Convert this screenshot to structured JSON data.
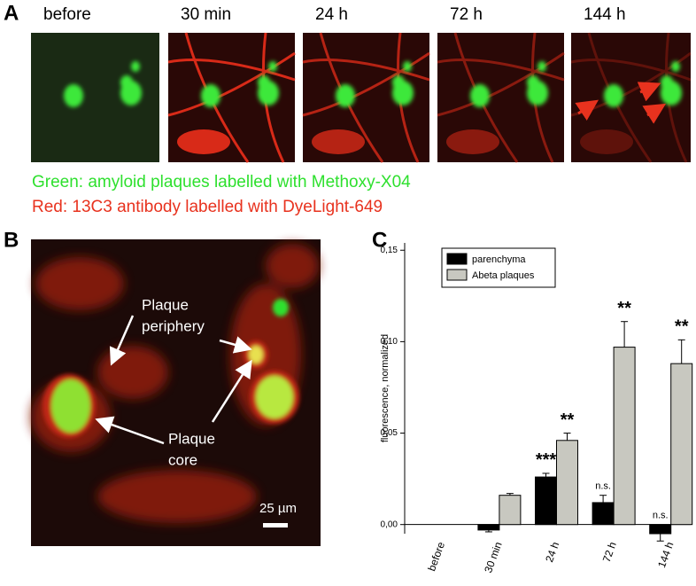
{
  "panel_a": {
    "label": "A",
    "timepoints": [
      "before",
      "30 min",
      "24 h",
      "72 h",
      "144 h"
    ],
    "legend": [
      "Green: amyloid plaques labelled with Methoxy-X04",
      "Red: 13C3 antibody labelled with DyeLight-649"
    ]
  },
  "panel_b": {
    "label": "B",
    "periphery": [
      "Plaque",
      "periphery"
    ],
    "core": [
      "Plaque",
      "core"
    ],
    "scale_bar": "25 µm"
  },
  "chart_data": {
    "type": "bar",
    "label": "C",
    "ylabel": "fluorescence, normalized",
    "categories": [
      "before",
      "30 min",
      "24 h",
      "72 h",
      "144 h"
    ],
    "series": [
      {
        "name": "parenchyma",
        "color": "#000000",
        "values": [
          0,
          -0.003,
          0.026,
          0.012,
          -0.005
        ],
        "errors": [
          0,
          0.001,
          0.002,
          0.004,
          0.004
        ],
        "labels": [
          null,
          null,
          "***",
          "n.s.",
          "n.s."
        ]
      },
      {
        "name": "Abeta plaques",
        "color": "#c8c8c0",
        "values": [
          0,
          0.016,
          0.046,
          0.097,
          0.088
        ],
        "errors": [
          0,
          0.001,
          0.004,
          0.014,
          0.013
        ],
        "labels": [
          null,
          null,
          "**",
          "**",
          "**"
        ]
      }
    ],
    "ylim": [
      -0.005,
      0.154
    ],
    "yticks": [
      {
        "value": 0,
        "label": "0,00"
      },
      {
        "value": 0.05,
        "label": "0,05"
      },
      {
        "value": 0.1,
        "label": "0,10"
      },
      {
        "value": 0.15,
        "label": "0,15"
      }
    ],
    "legend": "upper left"
  }
}
